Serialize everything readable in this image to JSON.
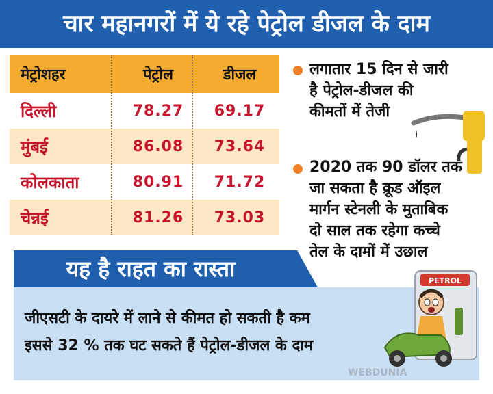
{
  "headline": "चार महानगरों में ये रहे पेट्रोल डीजल के दाम",
  "table": {
    "headers": [
      "मेट्रोशहर",
      "पेट्रोल",
      "डीजल"
    ],
    "rows": [
      {
        "city": "दिल्ली",
        "petrol": "78.27",
        "diesel": "69.17"
      },
      {
        "city": "मुंबई",
        "petrol": "86.08",
        "diesel": "73.64"
      },
      {
        "city": "कोलकाता",
        "petrol": "80.91",
        "diesel": "71.72"
      },
      {
        "city": "चेन्नई",
        "petrol": "81.26",
        "diesel": "73.03"
      }
    ]
  },
  "notes": [
    {
      "lines": [
        "लगातार 15 दिन से जारी",
        "है पेट्रोल-डीजल की",
        "कीमतों में तेजी"
      ]
    },
    {
      "lines": [
        "2020 तक 90 डॉलर तक",
        "जा सकता है क्रूड ऑइल",
        "मार्गन स्टेनली के मुताबिक",
        "दो साल तक रहेगा कच्चे",
        "तेल के दामों में उछाल"
      ]
    }
  ],
  "relief": {
    "title": "यह है राहत का रास्ता",
    "lines": [
      "जीएसटी के दायरे में लाने से कीमत हो सकती है कम",
      "इससे 32 % तक घट सकते हैं पेट्रोल-डीजल के दाम"
    ]
  },
  "cartoon_sign": "PETROL",
  "watermark": "WEBDUNIA",
  "colors": {
    "banner": "#1f5fae",
    "header_row": "#f5ab30",
    "shade_row": "#fde7c5",
    "value_red": "#c5162e",
    "bullet": "#f0812a",
    "panel": "#c9dff3"
  }
}
